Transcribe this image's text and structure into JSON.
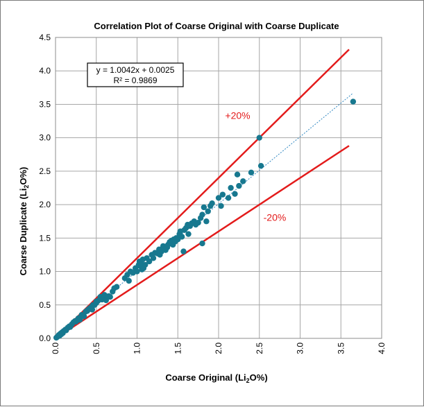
{
  "chart_data": {
    "type": "scatter",
    "title": "Correlation Plot of Coarse Original with  Coarse Duplicate",
    "xlabel": {
      "prefix": "Coarse Original  (Li",
      "sub": "2",
      "suffix": "O%)"
    },
    "ylabel": {
      "prefix": "Coarse Duplicate (Li",
      "sub": "2",
      "suffix": "O%)"
    },
    "xlim": [
      0,
      4.0
    ],
    "ylim": [
      0,
      4.5
    ],
    "x_ticks": [
      "0.0",
      "0.5",
      "1.0",
      "1.5",
      "2.0",
      "2.5",
      "3.0",
      "3.5",
      "4.0"
    ],
    "y_ticks": [
      "0.0",
      "0.5",
      "1.0",
      "1.5",
      "2.0",
      "2.5",
      "3.0",
      "3.5",
      "4.0",
      "4.5"
    ],
    "grid": true,
    "equation": "y = 1.0042x + 0.0025",
    "r_squared": "R² = 0.9869",
    "trendline": {
      "slope": 1.0042,
      "intercept": 0.0025,
      "x_range": [
        0,
        3.65
      ],
      "color": "#2e86c1"
    },
    "bounds": [
      {
        "label": "+20%",
        "slope": 1.2,
        "x_end": 3.6,
        "color": "#e31b1b"
      },
      {
        "label": "-20%",
        "slope": 0.8,
        "x_end": 3.6,
        "color": "#e31b1b"
      }
    ],
    "point_color": "#17788f",
    "points": [
      [
        0.01,
        0.01
      ],
      [
        0.02,
        0.02
      ],
      [
        0.03,
        0.03
      ],
      [
        0.04,
        0.05
      ],
      [
        0.05,
        0.04
      ],
      [
        0.06,
        0.07
      ],
      [
        0.07,
        0.06
      ],
      [
        0.08,
        0.09
      ],
      [
        0.09,
        0.08
      ],
      [
        0.1,
        0.11
      ],
      [
        0.12,
        0.13
      ],
      [
        0.13,
        0.12
      ],
      [
        0.15,
        0.16
      ],
      [
        0.17,
        0.18
      ],
      [
        0.18,
        0.17
      ],
      [
        0.2,
        0.21
      ],
      [
        0.22,
        0.24
      ],
      [
        0.24,
        0.26
      ],
      [
        0.25,
        0.25
      ],
      [
        0.27,
        0.27
      ],
      [
        0.28,
        0.3
      ],
      [
        0.3,
        0.28
      ],
      [
        0.32,
        0.35
      ],
      [
        0.35,
        0.33
      ],
      [
        0.37,
        0.4
      ],
      [
        0.39,
        0.41
      ],
      [
        0.4,
        0.43
      ],
      [
        0.42,
        0.45
      ],
      [
        0.44,
        0.47
      ],
      [
        0.45,
        0.43
      ],
      [
        0.46,
        0.5
      ],
      [
        0.48,
        0.5
      ],
      [
        0.5,
        0.53
      ],
      [
        0.5,
        0.55
      ],
      [
        0.52,
        0.56
      ],
      [
        0.55,
        0.62
      ],
      [
        0.57,
        0.58
      ],
      [
        0.6,
        0.6
      ],
      [
        0.6,
        0.65
      ],
      [
        0.62,
        0.57
      ],
      [
        0.65,
        0.63
      ],
      [
        0.67,
        0.62
      ],
      [
        0.7,
        0.7
      ],
      [
        0.72,
        0.75
      ],
      [
        0.75,
        0.77
      ],
      [
        0.85,
        0.9
      ],
      [
        0.88,
        0.95
      ],
      [
        0.9,
        0.86
      ],
      [
        0.92,
        1.0
      ],
      [
        0.95,
        0.98
      ],
      [
        0.98,
        1.05
      ],
      [
        1.0,
        1.0
      ],
      [
        1.02,
        1.1
      ],
      [
        1.03,
        1.15
      ],
      [
        1.04,
        1.08
      ],
      [
        1.05,
        1.12
      ],
      [
        1.06,
        1.03
      ],
      [
        1.07,
        1.18
      ],
      [
        1.08,
        1.05
      ],
      [
        1.1,
        1.1
      ],
      [
        1.12,
        1.2
      ],
      [
        1.15,
        1.15
      ],
      [
        1.18,
        1.25
      ],
      [
        1.2,
        1.2
      ],
      [
        1.22,
        1.28
      ],
      [
        1.25,
        1.27
      ],
      [
        1.27,
        1.33
      ],
      [
        1.28,
        1.25
      ],
      [
        1.3,
        1.3
      ],
      [
        1.32,
        1.38
      ],
      [
        1.35,
        1.32
      ],
      [
        1.37,
        1.36
      ],
      [
        1.38,
        1.4
      ],
      [
        1.4,
        1.44
      ],
      [
        1.42,
        1.46
      ],
      [
        1.44,
        1.4
      ],
      [
        1.45,
        1.48
      ],
      [
        1.47,
        1.45
      ],
      [
        1.48,
        1.5
      ],
      [
        1.5,
        1.48
      ],
      [
        1.52,
        1.56
      ],
      [
        1.53,
        1.6
      ],
      [
        1.55,
        1.52
      ],
      [
        1.57,
        1.3
      ],
      [
        1.58,
        1.62
      ],
      [
        1.6,
        1.65
      ],
      [
        1.62,
        1.7
      ],
      [
        1.63,
        1.56
      ],
      [
        1.65,
        1.68
      ],
      [
        1.67,
        1.72
      ],
      [
        1.7,
        1.75
      ],
      [
        1.72,
        1.7
      ],
      [
        1.75,
        1.73
      ],
      [
        1.78,
        1.8
      ],
      [
        1.8,
        1.85
      ],
      [
        1.8,
        1.42
      ],
      [
        1.82,
        1.96
      ],
      [
        1.85,
        1.75
      ],
      [
        1.87,
        1.9
      ],
      [
        1.9,
        1.98
      ],
      [
        1.92,
        2.02
      ],
      [
        2.0,
        2.1
      ],
      [
        2.03,
        1.98
      ],
      [
        2.05,
        2.15
      ],
      [
        2.12,
        2.1
      ],
      [
        2.15,
        2.25
      ],
      [
        2.2,
        2.16
      ],
      [
        2.23,
        2.45
      ],
      [
        2.25,
        2.28
      ],
      [
        2.3,
        2.35
      ],
      [
        2.4,
        2.48
      ],
      [
        2.5,
        3.0
      ],
      [
        2.52,
        2.58
      ],
      [
        3.65,
        3.54
      ]
    ]
  }
}
